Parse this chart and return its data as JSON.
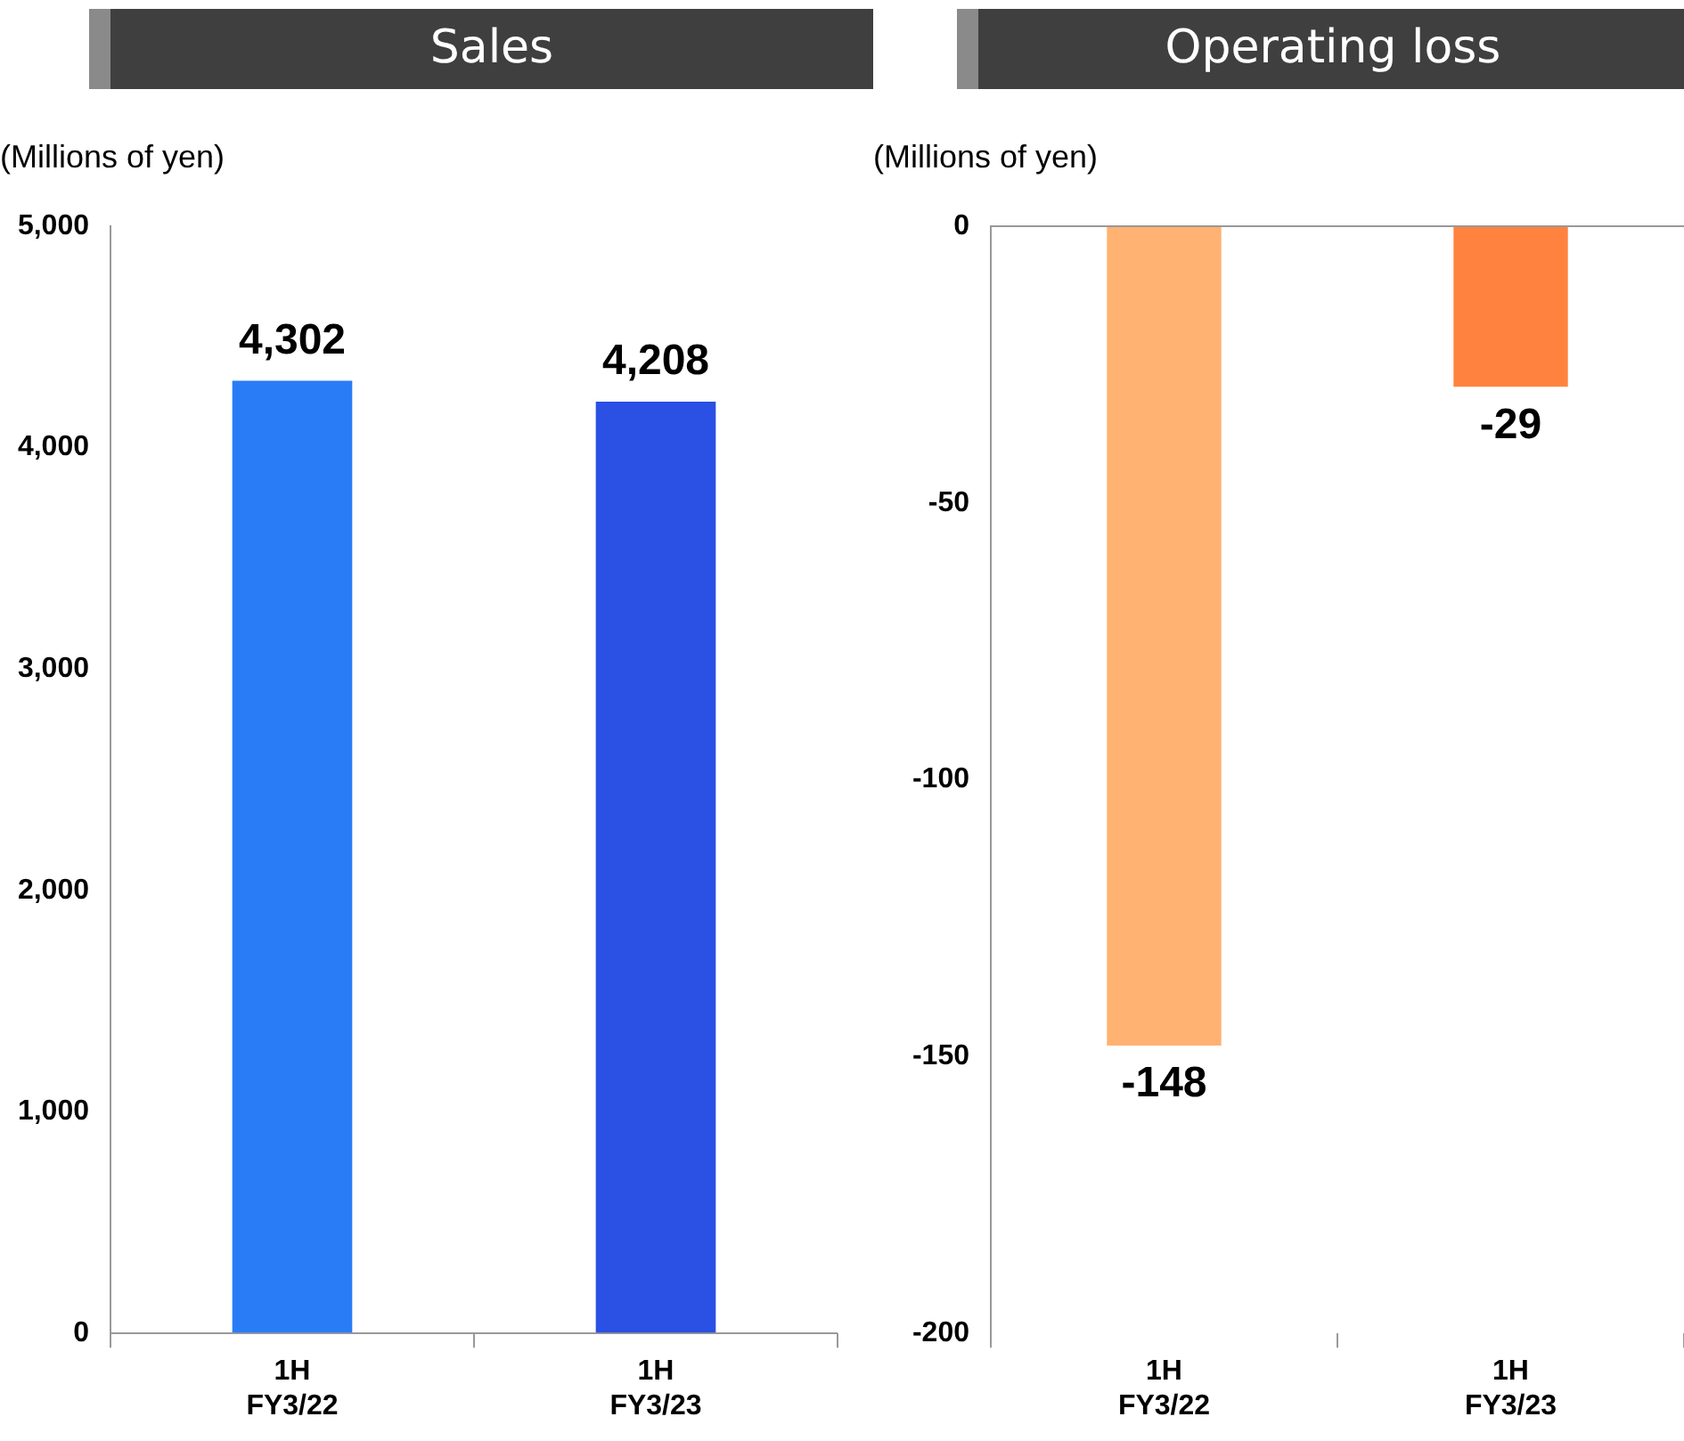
{
  "chart_data": [
    {
      "type": "bar",
      "title": "Sales",
      "ylabel": "(Millions of yen)",
      "categories": [
        "1H\nFY3/22",
        "1H\nFY3/23"
      ],
      "values": [
        4302,
        4208
      ],
      "value_labels": [
        "4,302",
        "4,208"
      ],
      "colors": [
        "#2a7cf6",
        "#2a50e4"
      ],
      "ylim": [
        0,
        5000
      ],
      "yticks": [
        0,
        {
          "value": 1000,
          "label": "1,000"
        },
        {
          "value": 2000,
          "label": "2,000"
        },
        {
          "value": 3000,
          "label": "3,000"
        },
        {
          "value": 4000,
          "label": "4,000"
        },
        {
          "value": 5000,
          "label": "5,000"
        }
      ]
    },
    {
      "type": "bar",
      "title": "Operating loss",
      "ylabel": "(Millions of yen)",
      "categories": [
        "1H\nFY3/22",
        "1H\nFY3/23"
      ],
      "values": [
        -148,
        -29
      ],
      "colors": [
        "#ffb272",
        "#ff823f"
      ],
      "ylim": [
        -200,
        0
      ],
      "yticks": [
        -200,
        -150,
        -100,
        -50,
        0
      ],
      "data_labels": true
    }
  ]
}
